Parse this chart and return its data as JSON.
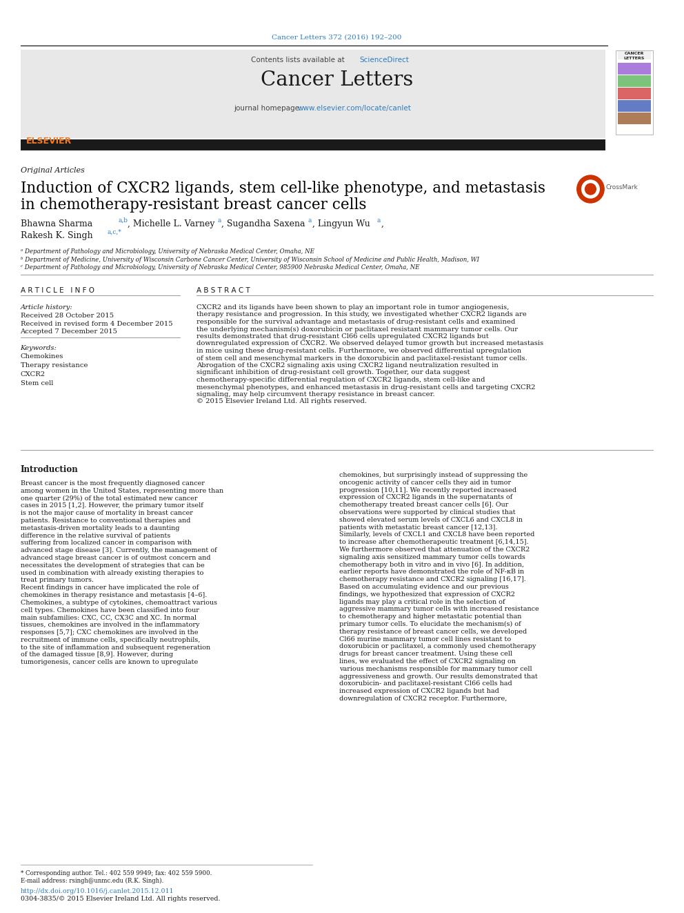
{
  "page_bg": "#ffffff",
  "top_citation": "Cancer Letters 372 (2016) 192–200",
  "top_citation_color": "#2e7bbf",
  "journal_header_bg": "#e8e8e8",
  "journal_title": "Cancer Letters",
  "contents_text": "Contents lists available at ",
  "sciencedirect_text": "ScienceDirect",
  "sciencedirect_color": "#2e7bbf",
  "homepage_text": "journal homepage: ",
  "homepage_url": "www.elsevier.com/locate/canlet",
  "homepage_url_color": "#2e7bbf",
  "dark_bar_color": "#1a1a1a",
  "section_label": "Original Articles",
  "article_title_line1": "Induction of CXCR2 ligands, stem cell-like phenotype, and metastasis",
  "article_title_line2": "in chemotherapy-resistant breast cancer cells",
  "article_title_color": "#000000",
  "authors_line1_text": "Bhawna Sharma ",
  "authors_sup1": "a,b",
  "authors_line1b": ", Michelle L. Varney ",
  "authors_sup2": "a",
  "authors_line1c": ", Sugandha Saxena ",
  "authors_sup3": "a",
  "authors_line1d": ", Lingyun Wu ",
  "authors_sup4": "a",
  "authors_line1e": ",",
  "authors_line2": "Rakesh K. Singh ",
  "authors_sup5": "a,c,*",
  "affil_a": "ᵃ Department of Pathology and Microbiology, University of Nebraska Medical Center, Omaha, NE",
  "affil_b": "ᵇ Department of Medicine, University of Wisconsin Carbone Cancer Center, University of Wisconsin School of Medicine and Public Health, Madison, WI",
  "affil_c": "ᶜ Department of Pathology and Microbiology, University of Nebraska Medical Center, 985900 Nebraska Medical Center, Omaha, NE",
  "article_info_header": "A R T I C L E   I N F O",
  "abstract_header": "A B S T R A C T",
  "article_history_label": "Article history:",
  "received_date": "Received 28 October 2015",
  "revised_date": "Received in revised form 4 December 2015",
  "accepted_date": "Accepted 7 December 2015",
  "keywords_label": "Keywords:",
  "keywords": [
    "Chemokines",
    "Therapy resistance",
    "CXCR2",
    "Stem cell"
  ],
  "abstract_text": "CXCR2 and its ligands have been shown to play an important role in tumor angiogenesis, therapy resistance and progression. In this study, we investigated whether CXCR2 ligands are responsible for the survival advantage and metastasis of drug-resistant cells and examined the underlying mechanism(s) doxorubicin or paclitaxel resistant mammary tumor cells. Our results demonstrated that drug-resistant Cl66 cells upregulated CXCR2 ligands but downregulated expression of CXCR2. We observed delayed tumor growth but increased metastasis in mice using these drug-resistant cells. Furthermore, we observed differential upregulation of stem cell and mesenchymal markers in the doxorubicin and paclitaxel-resistant tumor cells. Abrogation of the CXCR2 signaling axis using CXCR2 ligand neutralization resulted in significant inhibition of drug-resistant cell growth. Together, our data suggest chemotherapy-specific differential regulation of CXCR2 ligands, stem cell-like and mesenchymal phenotypes, and enhanced metastasis in drug-resistant cells and targeting CXCR2 signaling, may help circumvent therapy resistance in breast cancer.\n© 2015 Elsevier Ireland Ltd. All rights reserved.",
  "intro_header": "Introduction",
  "intro_col1": "   Breast cancer is the most frequently diagnosed cancer among women in the United States, representing more than one quarter (29%) of the total estimated new cancer cases in 2015 [1,2]. However, the primary tumor itself is not the major cause of mortality in breast cancer patients. Resistance to conventional therapies and metastasis-driven mortality leads to a daunting difference in the relative survival of patients suffering from localized cancer in comparison with advanced stage disease [3]. Currently, the management of advanced stage breast cancer is of outmost concern and necessitates the development of strategies that can be used in combination with already existing therapies to treat primary tumors.\n   Recent findings in cancer have implicated the role of chemokines in therapy resistance and metastasis [4–6]. Chemokines, a subtype of cytokines, chemoattract various cell types. Chemokines have been classified into four main subfamilies: CXC, CC, CX3C and XC. In normal tissues, chemokines are involved in the inflammatory responses [5,7]; CXC chemokines are involved in the recruitment of immune cells, specifically neutrophils, to the site of inflammation and subsequent regeneration of the damaged tissue [8,9]. However, during tumorigenesis, cancer cells are known to upregulate",
  "intro_col2": "chemokines, but surprisingly instead of suppressing the oncogenic activity of cancer cells they aid in tumor progression [10,11]. We recently reported increased expression of CXCR2 ligands in the supernatants of chemotherapy treated breast cancer cells [6]. Our observations were supported by clinical studies that showed elevated serum levels of CXCL6 and CXCL8 in patients with metastatic breast cancer [12,13]. Similarly, levels of CXCL1 and CXCL8 have been reported to increase after chemotherapeutic treatment [6,14,15]. We furthermore observed that attenuation of the CXCR2 signaling axis sensitized mammary tumor cells towards chemotherapy both in vitro and in vivo [6]. In addition, earlier reports have demonstrated the role of NF-κB in chemotherapy resistance and CXCR2 signaling [16,17].\n   Based on accumulating evidence and our previous findings, we hypothesized that expression of CXCR2 ligands may play a critical role in the selection of aggressive mammary tumor cells with increased resistance to chemotherapy and higher metastatic potential than primary tumor cells. To elucidate the mechanism(s) of therapy resistance of breast cancer cells, we developed Cl66 murine mammary tumor cell lines resistant to doxorubicin or paclitaxel, a commonly used chemotherapy drugs for breast cancer treatment. Using these cell lines, we evaluated the effect of CXCR2 signaling on various mechanisms responsible for mammary tumor cell aggressiveness and growth. Our results demonstrated that doxorubicin- and paclitaxel-resistant Cl66 cells had increased expression of CXCR2 ligands but had downregulation of CXCR2 receptor. Furthermore,",
  "footer_text1": "* Corresponding author. Tel.: 402 559 9949; fax: 402 559 5900.",
  "footer_text2": "E-mail address: rsingh@unmc.edu (R.K. Singh).",
  "footer_doi": "http://dx.doi.org/10.1016/j.canlet.2015.12.011",
  "footer_copyright": "0304-3835/© 2015 Elsevier Ireland Ltd. All rights reserved.",
  "link_color": "#2e7bbf",
  "text_color": "#000000",
  "gray_text": "#555555"
}
